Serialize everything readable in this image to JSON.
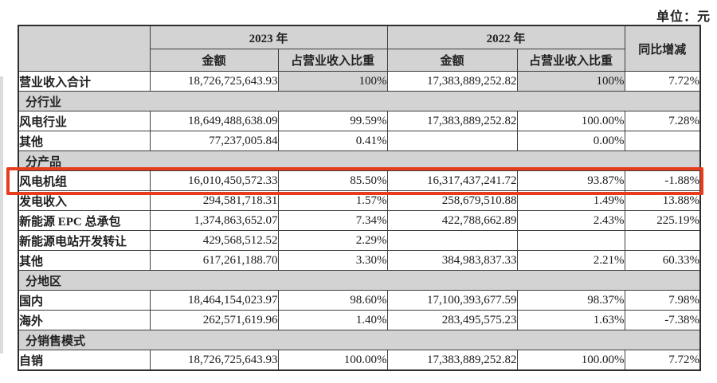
{
  "unit_label": "单位：元",
  "colors": {
    "header_gray": "#d3d3d3",
    "border": "#3d3d3d",
    "highlight_red": "#e73c1e",
    "text": "#1e1e1e"
  },
  "table": {
    "header": {
      "year_2023": "2023 年",
      "year_2022": "2022 年",
      "amount": "金额",
      "pct_of_revenue": "占营业收入比重",
      "yoy_change": "同比增减"
    },
    "rows": [
      {
        "type": "data",
        "label": "营业收入合计",
        "a2023": "18,726,725,643.93",
        "p2023": "100%",
        "a2022": "17,383,889,252.82",
        "p2022": "100%",
        "yoy": "7.72%",
        "shaded_pct": true
      },
      {
        "type": "section",
        "label": "分行业"
      },
      {
        "type": "data",
        "label": "风电行业",
        "a2023": "18,649,488,638.09",
        "p2023": "99.59%",
        "a2022": "17,383,889,252.82",
        "p2022": "100.00%",
        "yoy": "7.28%"
      },
      {
        "type": "data",
        "label": "其他",
        "a2023": "77,237,005.84",
        "p2023": "0.41%",
        "a2022": "",
        "p2022": "0.00%",
        "yoy": ""
      },
      {
        "type": "section",
        "label": "分产品"
      },
      {
        "type": "data",
        "label": "风电机组",
        "a2023": "16,010,450,572.33",
        "p2023": "85.50%",
        "a2022": "16,317,437,241.72",
        "p2022": "93.87%",
        "yoy": "-1.88%",
        "highlight": true
      },
      {
        "type": "data",
        "label": "发电收入",
        "a2023": "294,581,718.31",
        "p2023": "1.57%",
        "a2022": "258,679,510.88",
        "p2022": "1.49%",
        "yoy": "13.88%"
      },
      {
        "type": "data",
        "label": "新能源 EPC 总承包",
        "a2023": "1,374,863,652.07",
        "p2023": "7.34%",
        "a2022": "422,788,662.89",
        "p2022": "2.43%",
        "yoy": "225.19%"
      },
      {
        "type": "data",
        "label": "新能源电站开发转让",
        "a2023": "429,568,512.52",
        "p2023": "2.29%",
        "a2022": "",
        "p2022": "",
        "yoy": ""
      },
      {
        "type": "data",
        "label": "其他",
        "a2023": "617,261,188.70",
        "p2023": "3.30%",
        "a2022": "384,983,837.33",
        "p2022": "2.21%",
        "yoy": "60.33%"
      },
      {
        "type": "section",
        "label": "分地区"
      },
      {
        "type": "data",
        "label": "国内",
        "a2023": "18,464,154,023.97",
        "p2023": "98.60%",
        "a2022": "17,100,393,677.59",
        "p2022": "98.37%",
        "yoy": "7.98%"
      },
      {
        "type": "data",
        "label": "海外",
        "a2023": "262,571,619.96",
        "p2023": "1.40%",
        "a2022": "283,495,575.23",
        "p2022": "1.63%",
        "yoy": "-7.38%"
      },
      {
        "type": "section",
        "label": "分销售模式"
      },
      {
        "type": "data",
        "label": "自销",
        "a2023": "18,726,725,643.93",
        "p2023": "100.00%",
        "a2022": "17,383,889,252.82",
        "p2022": "100.00%",
        "yoy": "7.72%"
      }
    ]
  }
}
